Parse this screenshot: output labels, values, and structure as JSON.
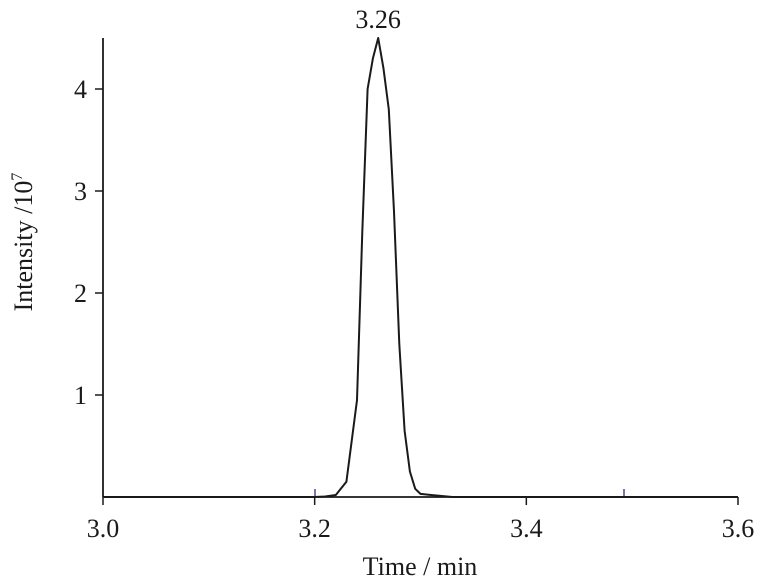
{
  "chart_data": {
    "type": "line",
    "xlabel": "Time / min",
    "ylabel": "Intensity /10",
    "ylabel_superscript": "7",
    "xlim": [
      3.0,
      3.6
    ],
    "ylim": [
      0,
      4.5
    ],
    "x_ticks": [
      "3.0",
      "3.2",
      "3.4",
      "3.6"
    ],
    "y_ticks": [
      "1",
      "2",
      "3",
      "4"
    ],
    "peak_label": "3.26",
    "grid": false,
    "series": [
      {
        "x": [
          3.0,
          3.2,
          3.21,
          3.22,
          3.23,
          3.24,
          3.245,
          3.25,
          3.255,
          3.26,
          3.265,
          3.27,
          3.275,
          3.28,
          3.285,
          3.29,
          3.295,
          3.3,
          3.31,
          3.32,
          3.33,
          3.6
        ],
        "y": [
          0,
          0,
          0.005,
          0.02,
          0.15,
          0.95,
          2.6,
          4.0,
          4.3,
          4.5,
          4.2,
          3.8,
          2.8,
          1.5,
          0.65,
          0.25,
          0.08,
          0.03,
          0.02,
          0.01,
          0.0,
          0
        ]
      }
    ]
  }
}
